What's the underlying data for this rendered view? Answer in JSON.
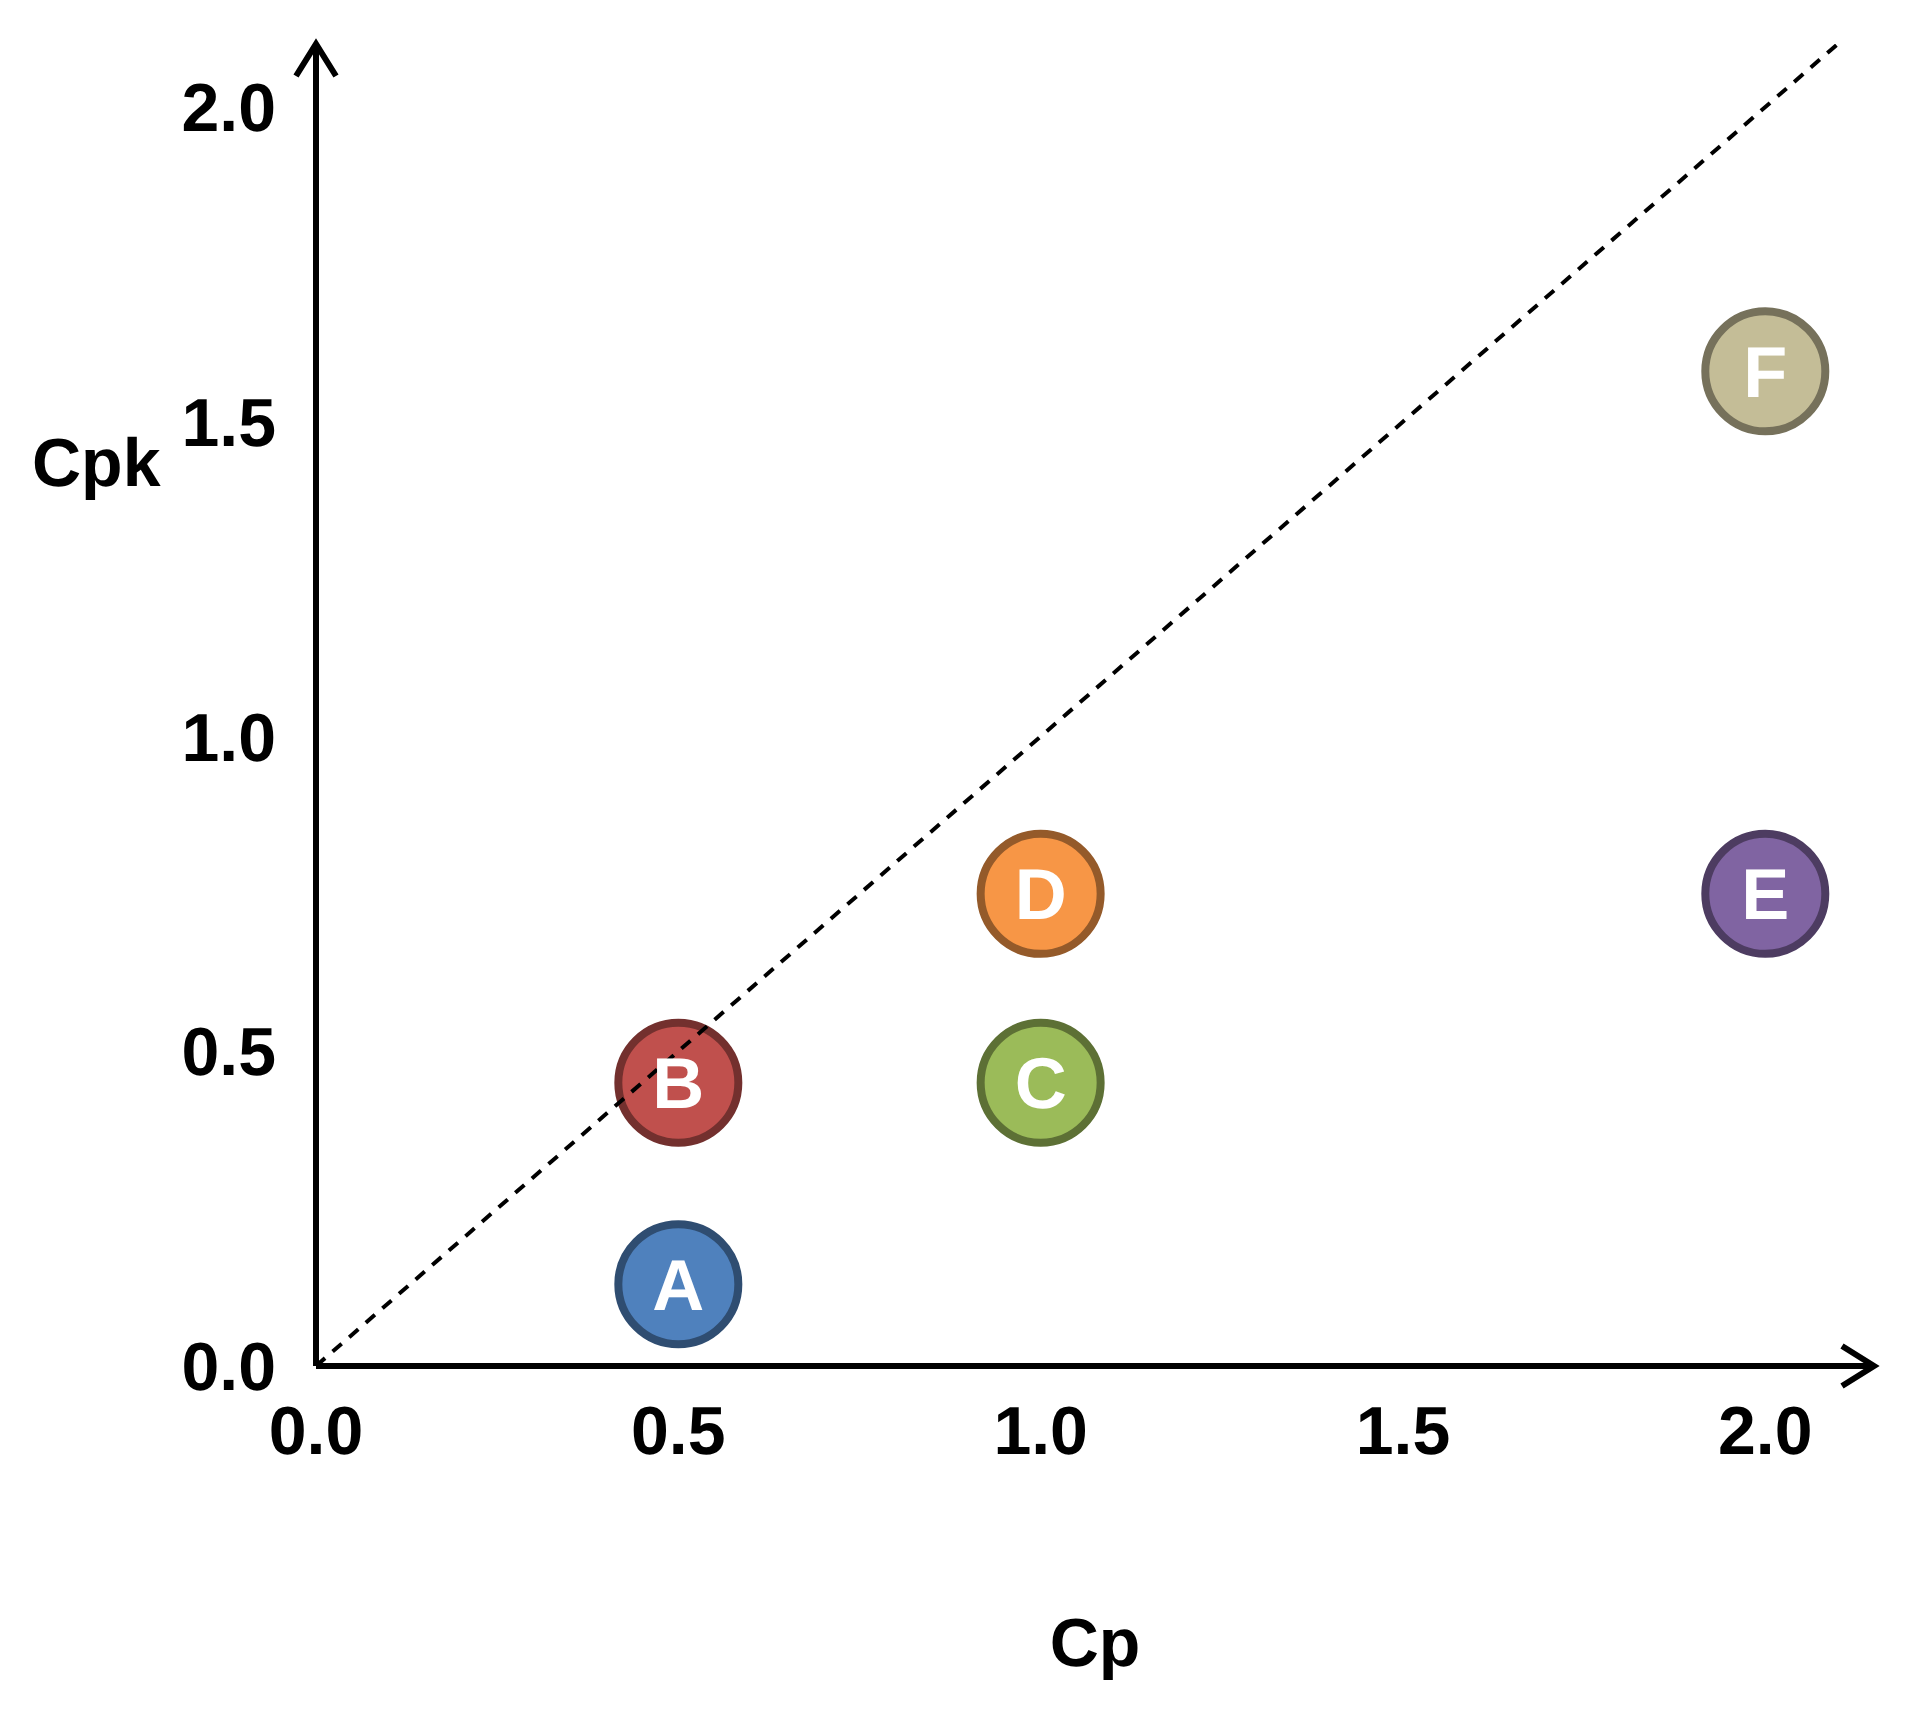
{
  "chart_data": {
    "type": "scatter",
    "xlabel": "Cp",
    "ylabel": "Cpk",
    "xlim": [
      0,
      2.15
    ],
    "ylim": [
      0,
      2.1
    ],
    "xticks": [
      {
        "value": 0,
        "label": "0.0"
      },
      0.5,
      {
        "value": 1,
        "label": "1.0"
      },
      1.5,
      {
        "value": 2,
        "label": "2.0"
      }
    ],
    "yticks": [
      {
        "value": 0,
        "label": "0.0"
      },
      0.5,
      {
        "value": 1,
        "label": "1.0"
      },
      1.5,
      {
        "value": 2,
        "label": "2.0"
      }
    ],
    "grid": false,
    "legend": false,
    "series": [
      {
        "marker": "circle",
        "x": [
          0.5,
          0.5,
          1,
          1,
          2,
          2
        ],
        "values": [
          0.13,
          0.45,
          0.45,
          0.75,
          0.75,
          1.58
        ],
        "colors": [
          "#4f81bd",
          "#c0504d",
          "#9bbb59",
          "#f79646",
          "#8064a2",
          "#c4bd97"
        ],
        "value_labels": [
          "A",
          "B",
          "C",
          "D",
          "E",
          "F"
        ]
      },
      {
        "type": "line",
        "marker": "none",
        "line_style": "dashed",
        "color": "#000000",
        "x": [
          0,
          2.1
        ],
        "values": [
          0,
          2.1
        ]
      }
    ]
  }
}
